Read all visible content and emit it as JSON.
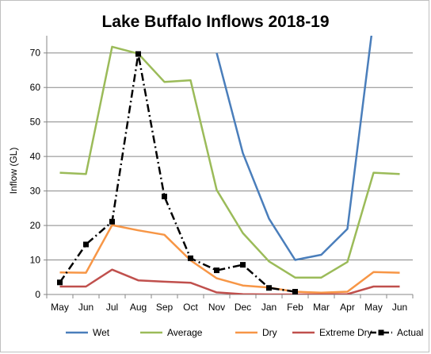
{
  "chart_data": {
    "type": "line",
    "title": "Lake Buffalo Inflows 2018-19",
    "xlabel": "",
    "ylabel": "Inflow (GL)",
    "ylim": [
      0,
      75
    ],
    "yticks": [
      0,
      10,
      20,
      30,
      40,
      50,
      60,
      70
    ],
    "grid": "horizontal",
    "legend_position": "bottom",
    "categories": [
      "May",
      "Jun",
      "Jul",
      "Aug",
      "Sep",
      "Oct",
      "Nov",
      "Dec",
      "Jan",
      "Feb",
      "Mar",
      "Apr",
      "May",
      "Jun"
    ],
    "series": [
      {
        "name": "Wet",
        "color": "#4a7ebb",
        "style": "solid",
        "values": [
          null,
          null,
          null,
          null,
          null,
          null,
          70,
          41,
          22,
          10,
          11.5,
          19,
          80,
          null
        ]
      },
      {
        "name": "Average",
        "color": "#9bbb59",
        "style": "solid",
        "values": [
          35.3,
          34.9,
          71.8,
          69.8,
          61.6,
          62.1,
          30.3,
          17.8,
          9.6,
          4.9,
          4.9,
          9.4,
          35.3,
          34.9
        ]
      },
      {
        "name": "Dry",
        "color": "#f79646",
        "style": "solid",
        "values": [
          6.4,
          6.3,
          20.1,
          18.6,
          17.3,
          9.9,
          4.7,
          2.6,
          2.0,
          0.8,
          0.5,
          0.8,
          6.5,
          6.3
        ]
      },
      {
        "name": "Extreme Dry",
        "color": "#c0504d",
        "style": "solid",
        "values": [
          2.3,
          2.3,
          7.2,
          4.1,
          3.7,
          3.4,
          0.6,
          0.1,
          0.0,
          0.0,
          0.0,
          0.1,
          2.3,
          2.3
        ]
      },
      {
        "name": "Actual",
        "color": "#000000",
        "style": "dash-dot",
        "marker": "square",
        "values": [
          3.5,
          14.5,
          21.1,
          69.7,
          28.4,
          10.5,
          7.0,
          8.6,
          1.9,
          0.8,
          null,
          null,
          null,
          null
        ]
      }
    ]
  }
}
